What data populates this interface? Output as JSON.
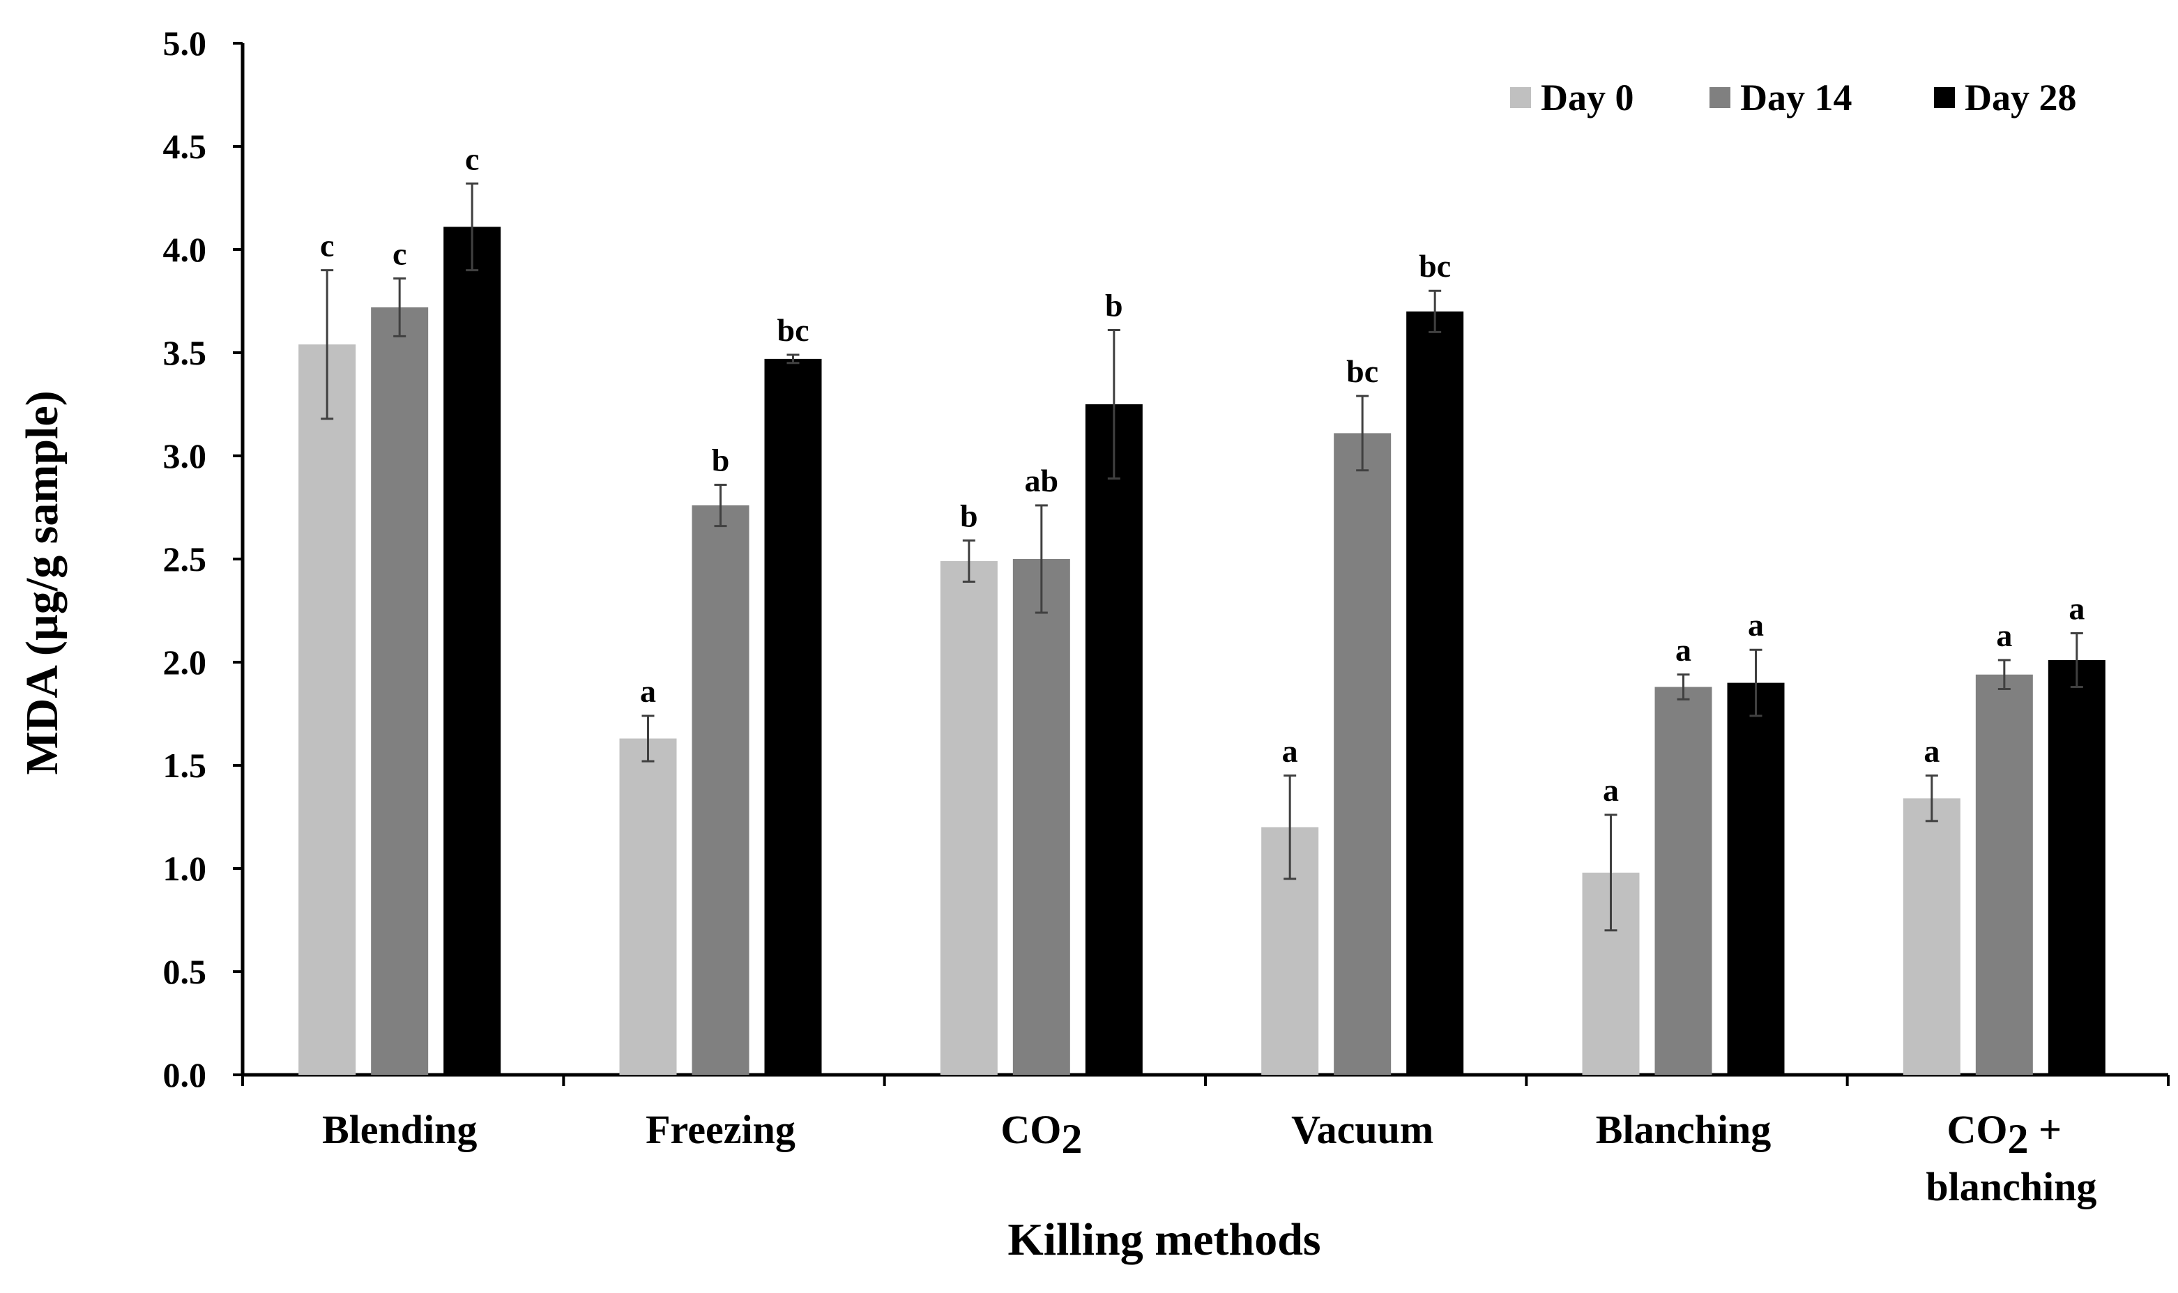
{
  "chart_data": {
    "type": "bar",
    "title": "",
    "xlabel": "Killing methods",
    "ylabel": "MDA (µg/g sample)",
    "ylim": [
      0,
      5
    ],
    "yticks": [
      "0.0",
      "0.5",
      "1.0",
      "1.5",
      "2.0",
      "2.5",
      "3.0",
      "3.5",
      "4.0",
      "4.5",
      "5.0"
    ],
    "ytick_values": [
      0,
      0.5,
      1.0,
      1.5,
      2.0,
      2.5,
      3.0,
      3.5,
      4.0,
      4.5,
      5.0
    ],
    "grid": false,
    "legend_position": "top-right",
    "categories": [
      {
        "lines": [
          "Blending"
        ]
      },
      {
        "lines": [
          "Freezing"
        ]
      },
      {
        "lines": [
          "CO",
          "2",
          ""
        ],
        "base": "CO",
        "sub": "2",
        "rest": ""
      },
      {
        "lines": [
          "Vacuum"
        ]
      },
      {
        "lines": [
          "Blanching"
        ]
      },
      {
        "lines": [
          "CO",
          "2",
          " +"
        ],
        "base": "CO",
        "sub": "2",
        "rest": " +",
        "line2": "blanching"
      }
    ],
    "series": [
      {
        "name": "Day 0",
        "color": "#c0c0c0",
        "values": [
          3.54,
          1.63,
          2.49,
          1.2,
          0.98,
          1.34
        ],
        "errors": [
          0.36,
          0.11,
          0.1,
          0.25,
          0.28,
          0.11
        ],
        "labels": [
          "c",
          "a",
          "b",
          "a",
          "a",
          "a"
        ]
      },
      {
        "name": "Day 14",
        "color": "#808080",
        "values": [
          3.72,
          2.76,
          2.5,
          3.11,
          1.88,
          1.94
        ],
        "errors": [
          0.14,
          0.1,
          0.26,
          0.18,
          0.06,
          0.07
        ],
        "labels": [
          "c",
          "b",
          "ab",
          "bc",
          "a",
          "a"
        ]
      },
      {
        "name": "Day 28",
        "color": "#000000",
        "values": [
          4.11,
          3.47,
          3.25,
          3.7,
          1.9,
          2.01
        ],
        "errors": [
          0.21,
          0.02,
          0.36,
          0.1,
          0.16,
          0.13
        ],
        "labels": [
          "c",
          "bc",
          "b",
          "bc",
          "a",
          "a"
        ]
      }
    ]
  }
}
